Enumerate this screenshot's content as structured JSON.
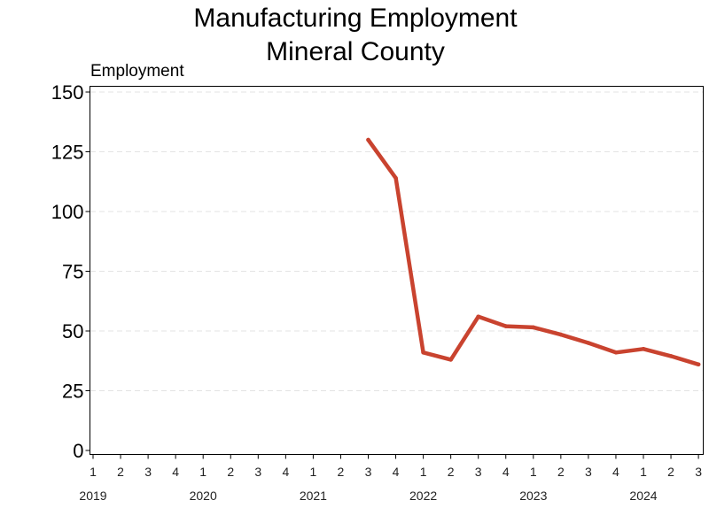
{
  "chart_data": {
    "type": "line",
    "title_lines": [
      "Manufacturing Employment",
      "Mineral County"
    ],
    "xlabel": "",
    "ylabel": "Employment",
    "ylim": [
      0,
      150
    ],
    "y_ticks": [
      "0",
      "25",
      "50",
      "75",
      "100",
      "125",
      "150"
    ],
    "grid": "horizontal dashed",
    "legend": "none",
    "line_color": "#c9432f",
    "x_quarter_labels": [
      "1",
      "2",
      "3",
      "4",
      "1",
      "2",
      "3",
      "4",
      "1",
      "2",
      "3",
      "4",
      "1",
      "2",
      "3",
      "4",
      "1",
      "2",
      "3",
      "4",
      "1",
      "2",
      "3"
    ],
    "x_year_labels": [
      "2019",
      "2020",
      "2021",
      "2022",
      "2023",
      "2024"
    ],
    "series": [
      {
        "x": [
          "2021 Q3",
          "2021 Q4",
          "2022 Q1",
          "2022 Q2",
          "2022 Q3",
          "2022 Q4",
          "2023 Q1",
          "2023 Q2",
          "2023 Q3",
          "2023 Q4",
          "2024 Q1",
          "2024 Q2",
          "2024 Q3"
        ],
        "values": [
          130,
          114,
          41,
          38,
          56,
          52,
          51.5,
          48.5,
          45,
          41,
          42.5,
          39.5,
          36
        ]
      }
    ]
  }
}
